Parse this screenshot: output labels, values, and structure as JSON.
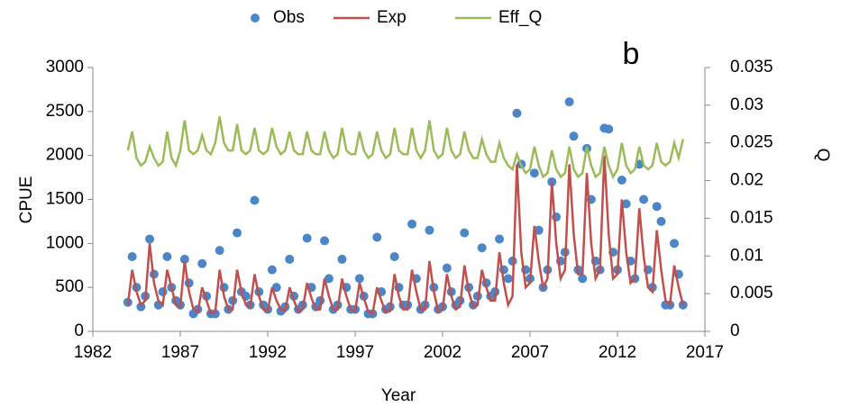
{
  "chart_data": {
    "type": "line",
    "annotation": "b",
    "xlabel": "Year",
    "ylabel": "CPUE",
    "y2label": "Q",
    "xlim": [
      1982,
      2017
    ],
    "xticks": [
      1982,
      1987,
      1992,
      1997,
      2002,
      2007,
      2012,
      2017
    ],
    "ylim": [
      0,
      3000
    ],
    "yticks": [
      0,
      500,
      1000,
      1500,
      2000,
      2500,
      3000
    ],
    "y2lim": [
      0,
      0.035
    ],
    "y2ticks": [
      0,
      0.005,
      0.01,
      0.015,
      0.02,
      0.025,
      0.03,
      0.035
    ],
    "x": [
      1984,
      1984.25,
      1984.5,
      1984.75,
      1985,
      1985.25,
      1985.5,
      1985.75,
      1986,
      1986.25,
      1986.5,
      1986.75,
      1987,
      1987.25,
      1987.5,
      1987.75,
      1988,
      1988.25,
      1988.5,
      1988.75,
      1989,
      1989.25,
      1989.5,
      1989.75,
      1990,
      1990.25,
      1990.5,
      1990.75,
      1991,
      1991.25,
      1991.5,
      1991.75,
      1992,
      1992.25,
      1992.5,
      1992.75,
      1993,
      1993.25,
      1993.5,
      1993.75,
      1994,
      1994.25,
      1994.5,
      1994.75,
      1995,
      1995.25,
      1995.5,
      1995.75,
      1996,
      1996.25,
      1996.5,
      1996.75,
      1997,
      1997.25,
      1997.5,
      1997.75,
      1998,
      1998.25,
      1998.5,
      1998.75,
      1999,
      1999.25,
      1999.5,
      1999.75,
      2000,
      2000.25,
      2000.5,
      2000.75,
      2001,
      2001.25,
      2001.5,
      2001.75,
      2002,
      2002.25,
      2002.5,
      2002.75,
      2003,
      2003.25,
      2003.5,
      2003.75,
      2004,
      2004.25,
      2004.5,
      2004.75,
      2005,
      2005.25,
      2005.5,
      2005.75,
      2006,
      2006.25,
      2006.5,
      2006.75,
      2007,
      2007.25,
      2007.5,
      2007.75,
      2008,
      2008.25,
      2008.5,
      2008.75,
      2009,
      2009.25,
      2009.5,
      2009.75,
      2010,
      2010.25,
      2010.5,
      2010.75,
      2011,
      2011.25,
      2011.5,
      2011.75,
      2012,
      2012.25,
      2012.5,
      2012.75,
      2013,
      2013.25,
      2013.5,
      2013.75,
      2014,
      2014.25,
      2014.5,
      2014.75,
      2015,
      2015.25,
      2015.5,
      2015.75
    ],
    "series": [
      {
        "name": "Obs",
        "kind": "scatter",
        "color": "#4a86c8",
        "values": [
          330,
          850,
          500,
          280,
          400,
          1050,
          650,
          300,
          450,
          850,
          500,
          350,
          300,
          820,
          550,
          200,
          250,
          770,
          400,
          200,
          200,
          920,
          500,
          250,
          350,
          1120,
          450,
          400,
          300,
          1490,
          450,
          300,
          250,
          700,
          500,
          230,
          280,
          820,
          400,
          250,
          300,
          1060,
          500,
          280,
          350,
          1030,
          600,
          250,
          300,
          820,
          500,
          250,
          250,
          600,
          400,
          200,
          200,
          1070,
          450,
          250,
          280,
          850,
          500,
          300,
          300,
          1220,
          600,
          250,
          300,
          1150,
          500,
          250,
          280,
          720,
          450,
          300,
          350,
          1120,
          500,
          300,
          400,
          950,
          550,
          400,
          450,
          1050,
          700,
          600,
          800,
          2480,
          1900,
          700,
          600,
          1800,
          1150,
          500,
          700,
          1700,
          1300,
          800,
          900,
          2610,
          2220,
          700,
          600,
          2080,
          1500,
          800,
          700,
          2310,
          2300,
          900,
          700,
          1720,
          1450,
          800,
          600,
          1900,
          1500,
          700,
          500,
          1420,
          1250,
          300,
          300,
          1000,
          650,
          300
        ]
      },
      {
        "name": "Exp",
        "kind": "line",
        "color": "#c0504d",
        "values": [
          300,
          700,
          450,
          300,
          350,
          1000,
          550,
          350,
          300,
          700,
          500,
          300,
          280,
          800,
          450,
          250,
          220,
          500,
          350,
          200,
          220,
          700,
          400,
          250,
          250,
          700,
          450,
          300,
          280,
          650,
          400,
          250,
          230,
          500,
          350,
          250,
          230,
          500,
          350,
          230,
          250,
          550,
          380,
          250,
          250,
          600,
          400,
          250,
          250,
          600,
          400,
          250,
          230,
          550,
          380,
          220,
          200,
          500,
          350,
          220,
          230,
          650,
          400,
          250,
          250,
          700,
          450,
          250,
          250,
          800,
          450,
          230,
          250,
          650,
          400,
          250,
          280,
          750,
          450,
          280,
          300,
          700,
          500,
          350,
          350,
          900,
          550,
          300,
          400,
          1900,
          900,
          500,
          550,
          1200,
          800,
          500,
          600,
          1700,
          1000,
          600,
          700,
          1900,
          1100,
          650,
          650,
          1800,
          1000,
          600,
          700,
          2000,
          1100,
          600,
          650,
          1500,
          900,
          550,
          600,
          1400,
          850,
          500,
          450,
          1150,
          700,
          350,
          300,
          750,
          500,
          300
        ]
      },
      {
        "name": "Eff_Q",
        "kind": "line",
        "axis": "y2",
        "color": "#9bbb59",
        "values": [
          0.024,
          0.0265,
          0.023,
          0.022,
          0.0225,
          0.0245,
          0.023,
          0.022,
          0.0225,
          0.0265,
          0.023,
          0.022,
          0.024,
          0.028,
          0.024,
          0.0235,
          0.024,
          0.026,
          0.024,
          0.0235,
          0.025,
          0.0285,
          0.025,
          0.024,
          0.024,
          0.0275,
          0.024,
          0.0235,
          0.024,
          0.027,
          0.024,
          0.0235,
          0.024,
          0.027,
          0.0245,
          0.0235,
          0.024,
          0.0265,
          0.024,
          0.0235,
          0.0235,
          0.0265,
          0.024,
          0.0235,
          0.0235,
          0.0265,
          0.024,
          0.023,
          0.0235,
          0.027,
          0.024,
          0.0235,
          0.0235,
          0.0265,
          0.024,
          0.023,
          0.0235,
          0.0265,
          0.024,
          0.023,
          0.0235,
          0.027,
          0.024,
          0.0235,
          0.0235,
          0.027,
          0.024,
          0.023,
          0.024,
          0.028,
          0.024,
          0.023,
          0.0235,
          0.027,
          0.024,
          0.023,
          0.0235,
          0.0265,
          0.024,
          0.023,
          0.023,
          0.0255,
          0.0235,
          0.0225,
          0.0225,
          0.025,
          0.023,
          0.022,
          0.0215,
          0.0235,
          0.022,
          0.021,
          0.0215,
          0.0245,
          0.022,
          0.0205,
          0.021,
          0.024,
          0.0215,
          0.0205,
          0.021,
          0.0245,
          0.0215,
          0.0205,
          0.021,
          0.0245,
          0.022,
          0.0205,
          0.021,
          0.0245,
          0.022,
          0.0205,
          0.0215,
          0.025,
          0.022,
          0.021,
          0.0215,
          0.0245,
          0.022,
          0.0215,
          0.022,
          0.025,
          0.0225,
          0.022,
          0.0225,
          0.025,
          0.023,
          0.0255
        ]
      }
    ]
  }
}
